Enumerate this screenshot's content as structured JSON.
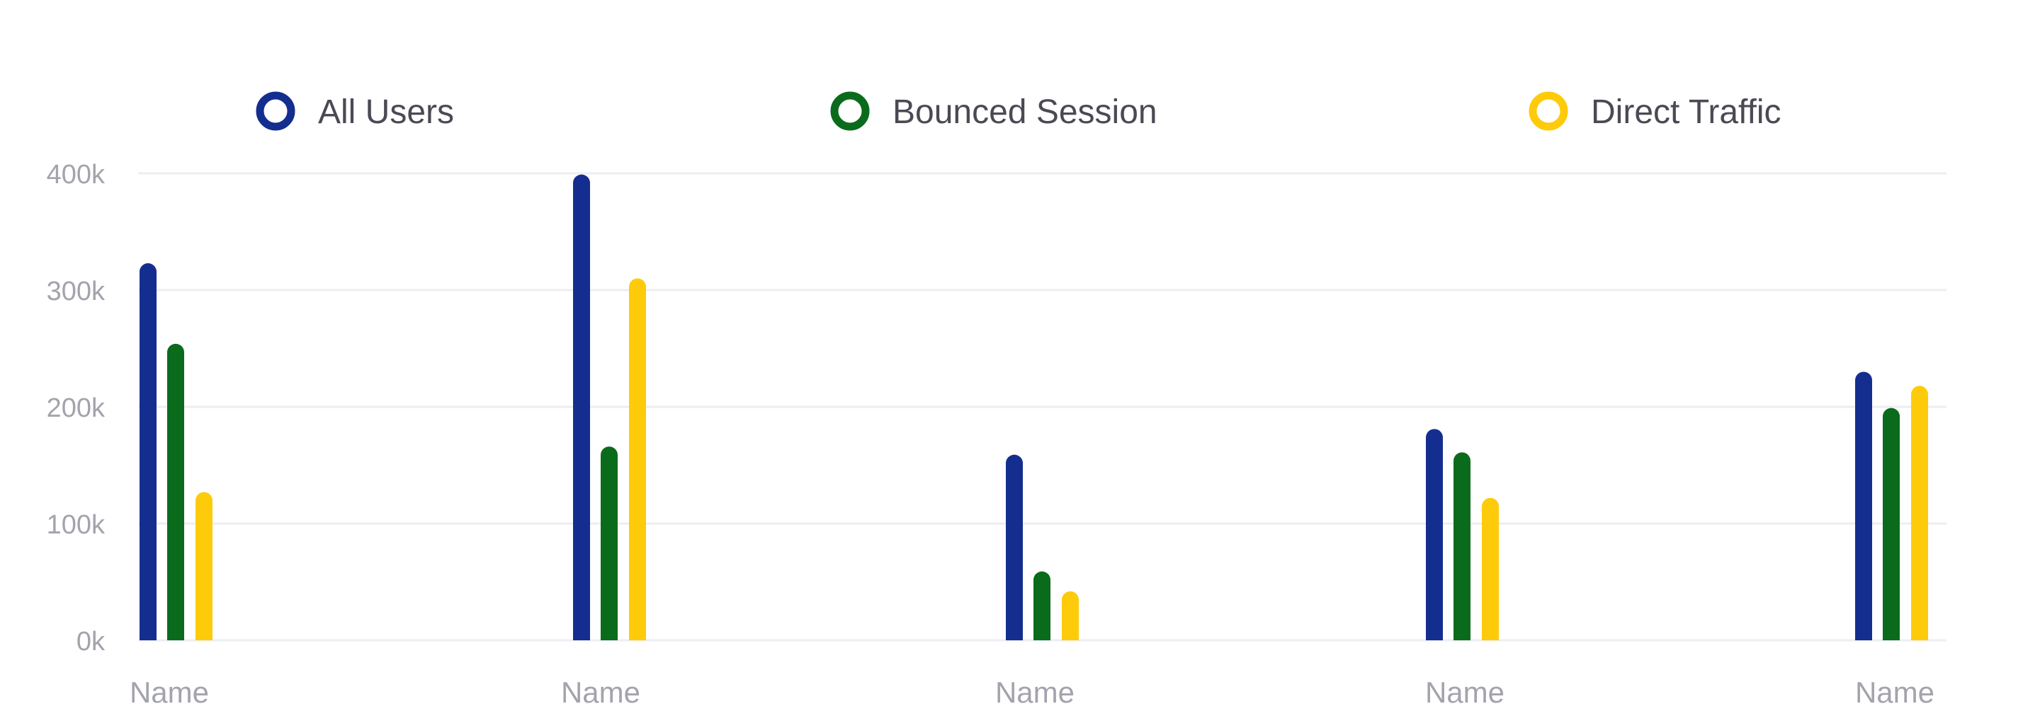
{
  "chart_data": {
    "type": "bar",
    "categories": [
      "Name",
      "Name",
      "Name",
      "Name",
      "Name"
    ],
    "series": [
      {
        "name": "All Users",
        "color": "#142e8f",
        "values": [
          323000,
          399000,
          159000,
          181000,
          230000
        ]
      },
      {
        "name": "Bounced Session",
        "color": "#0b6b1c",
        "values": [
          254000,
          166000,
          59000,
          161000,
          199000
        ]
      },
      {
        "name": "Direct Traffic",
        "color": "#fdcb0a",
        "values": [
          127000,
          310000,
          42000,
          122000,
          218000
        ]
      }
    ],
    "ylim": [
      0,
      400000
    ],
    "yticks": [
      0,
      100000,
      200000,
      300000,
      400000
    ],
    "ytick_labels": [
      "0k",
      "100k",
      "200k",
      "300k",
      "400k"
    ],
    "grid": true,
    "legend_position": "top"
  }
}
